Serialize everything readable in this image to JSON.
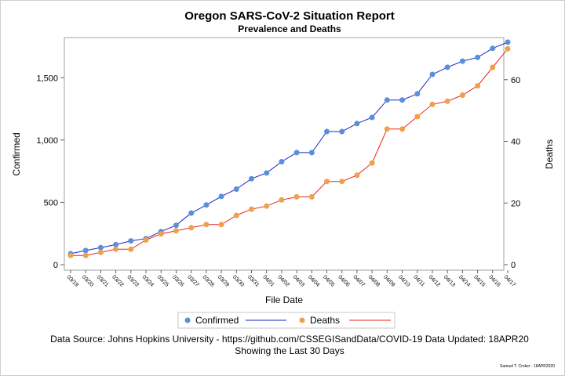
{
  "chart_data": {
    "type": "line",
    "title": "Oregon SARS-CoV-2 Situation Report",
    "subtitle": "Prevalence and Deaths",
    "xlabel": "File Date",
    "ylabel_left": "Confirmed",
    "ylabel_right": "Deaths",
    "ylim_left": [
      0,
      1800
    ],
    "ylim_right": [
      0,
      70
    ],
    "yticks_left": [
      0,
      500,
      1000,
      1500
    ],
    "yticks_left_labels": [
      "0",
      "500",
      "1,000",
      "1,500"
    ],
    "yticks_right": [
      0,
      20,
      40,
      60
    ],
    "yticks_right_labels": [
      "0",
      "20",
      "40",
      "60"
    ],
    "categories": [
      "03/19",
      "03/20",
      "03/21",
      "03/22",
      "03/23",
      "03/24",
      "03/25",
      "03/26",
      "03/27",
      "03/28",
      "03/29",
      "03/30",
      "03/31",
      "04/01",
      "04/02",
      "04/03",
      "04/04",
      "04/05",
      "04/06",
      "04/07",
      "04/08",
      "04/09",
      "04/10",
      "04/11",
      "04/12",
      "04/13",
      "04/14",
      "04/15",
      "04/16",
      "04/17"
    ],
    "series": [
      {
        "name": "Confirmed",
        "axis": "left",
        "marker_color": "#5b8fd9",
        "line_color": "#1a24c7",
        "values": [
          88,
          114,
          137,
          161,
          191,
          209,
          266,
          316,
          414,
          479,
          548,
          606,
          690,
          736,
          826,
          899,
          899,
          1068,
          1068,
          1132,
          1181,
          1321,
          1321,
          1371,
          1527,
          1584,
          1633,
          1663,
          1736,
          1785
        ]
      },
      {
        "name": "Deaths",
        "axis": "right",
        "marker_color": "#f0a04b",
        "line_color": "#e8231a",
        "values": [
          3,
          3,
          4,
          5,
          5,
          8,
          10,
          11,
          12,
          13,
          13,
          16,
          18,
          19,
          21,
          22,
          22,
          27,
          27,
          29,
          33,
          44,
          44,
          48,
          52,
          53,
          55,
          58,
          64,
          70
        ]
      }
    ],
    "legend_position": "bottom"
  },
  "footer": {
    "source_line": "Data Source: Johns Hopkins University - https://github.com/CSSEGISandData/COVID-19 Data Updated: 18APR20",
    "window_line": "Showing the Last 30 Days",
    "credit": "Samuel T. Croker - 18APR2020"
  }
}
